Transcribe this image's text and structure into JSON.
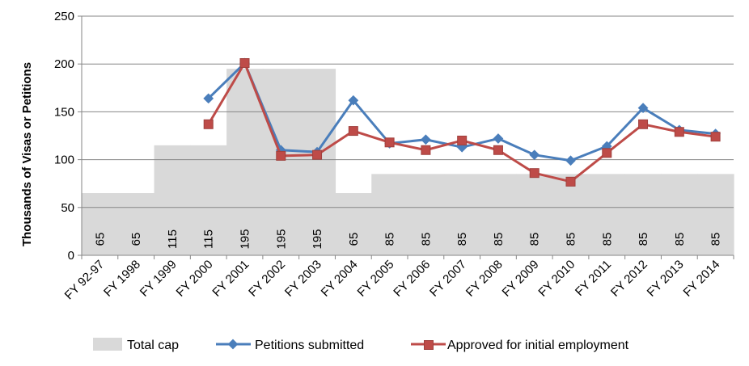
{
  "chart_data": {
    "type": "line",
    "ylabel": "Thousands of Visas or Petitions",
    "ylim": [
      0,
      250
    ],
    "yticks": [
      0,
      50,
      100,
      150,
      200,
      250
    ],
    "grid": "horizontal",
    "legend_position": "bottom",
    "categories": [
      "FY 92-97",
      "FY 1998",
      "FY 1999",
      "FY 2000",
      "FY 2001",
      "FY 2002",
      "FY 2003",
      "FY 2004",
      "FY 2005",
      "FY 2006",
      "FY 2007",
      "FY 2008",
      "FY 2009",
      "FY 2010",
      "FY 2011",
      "FY 2012",
      "FY 2013",
      "FY 2014"
    ],
    "series": [
      {
        "name": "Total cap",
        "kind": "area",
        "color": "#d9d9d9",
        "values": [
          65,
          65,
          115,
          115,
          195,
          195,
          195,
          65,
          85,
          85,
          85,
          85,
          85,
          85,
          85,
          85,
          85,
          85
        ],
        "labels": [
          "65",
          "65",
          "115",
          "115",
          "195",
          "195",
          "195",
          "65",
          "85",
          "85",
          "85",
          "85",
          "85",
          "85",
          "85",
          "85",
          "85",
          "85"
        ]
      },
      {
        "name": "Petitions submitted",
        "kind": "line",
        "marker": "diamond",
        "color": "#4a7ebb",
        "values": [
          null,
          null,
          null,
          164,
          201,
          110,
          108,
          162,
          117,
          121,
          113,
          122,
          105,
          99,
          114,
          154,
          131,
          127
        ]
      },
      {
        "name": "Approved for initial employment",
        "kind": "line",
        "marker": "square",
        "color": "#be4b48",
        "values": [
          null,
          null,
          null,
          137,
          201,
          104,
          105,
          130,
          118,
          110,
          120,
          110,
          86,
          77,
          107,
          137,
          129,
          124
        ]
      }
    ]
  }
}
